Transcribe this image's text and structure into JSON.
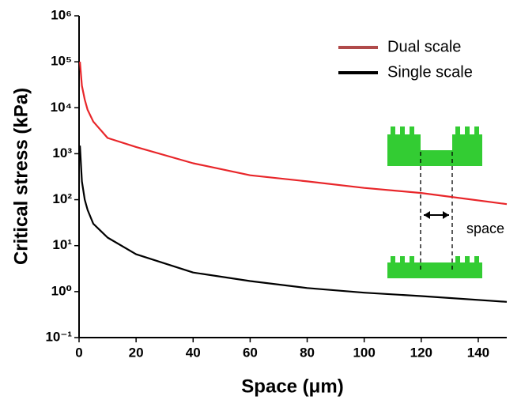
{
  "chart_data": {
    "type": "line",
    "x_label": "Space (μm)",
    "y_label": "Critical stress (kPa)",
    "x": [
      0.3,
      1,
      2,
      3,
      5,
      10,
      20,
      40,
      60,
      80,
      100,
      120,
      150
    ],
    "series": [
      {
        "name": "Dual scale",
        "color": "#e8262a",
        "values": [
          100000,
          30000,
          15000,
          9000,
          5000,
          2200,
          1400,
          620,
          340,
          250,
          180,
          140,
          80
        ]
      },
      {
        "name": "Single scale",
        "color": "#000000",
        "values": [
          1500,
          250,
          100,
          60,
          30,
          15,
          6.5,
          2.6,
          1.7,
          1.2,
          0.95,
          0.8,
          0.6
        ]
      }
    ],
    "xlim": [
      0,
      150
    ],
    "xticks": [
      0,
      20,
      40,
      60,
      80,
      100,
      120,
      140
    ],
    "ylim": [
      0.1,
      1000000
    ],
    "yticks": [
      {
        "value": 0.1,
        "label": "10⁻¹"
      },
      {
        "value": 1,
        "label": "10⁰"
      },
      {
        "value": 10,
        "label": "10¹"
      },
      {
        "value": 100,
        "label": "10²"
      },
      {
        "value": 1000,
        "label": "10³"
      },
      {
        "value": 10000,
        "label": "10⁴"
      },
      {
        "value": 100000,
        "label": "10⁵"
      },
      {
        "value": 1000000,
        "label": "10⁶"
      }
    ],
    "y_log": true,
    "grid": false,
    "legend_position": "upper right",
    "annotation": "space"
  }
}
